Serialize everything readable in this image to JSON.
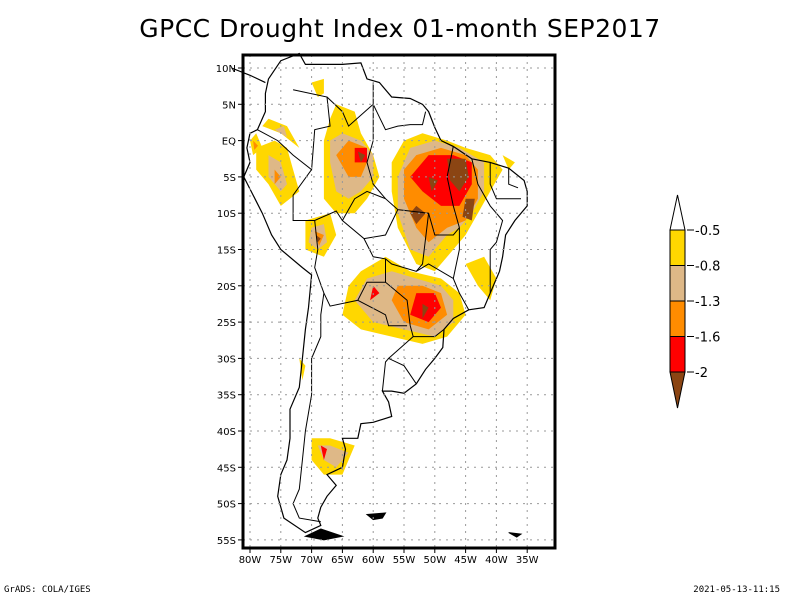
{
  "title": "GPCC Drought Index 01-month SEP2017",
  "footer": {
    "left": "GrADS: COLA/IGES",
    "right": "2021-05-13-11:15"
  },
  "map": {
    "lon_range": [
      -81,
      -31
    ],
    "lat_range": [
      -56,
      12
    ],
    "lon_ticks": [
      {
        "value": -80,
        "label": "80W"
      },
      {
        "value": -75,
        "label": "75W"
      },
      {
        "value": -70,
        "label": "70W"
      },
      {
        "value": -65,
        "label": "65W"
      },
      {
        "value": -60,
        "label": "60W"
      },
      {
        "value": -55,
        "label": "55W"
      },
      {
        "value": -50,
        "label": "50W"
      },
      {
        "value": -45,
        "label": "45W"
      },
      {
        "value": -40,
        "label": "40W"
      },
      {
        "value": -35,
        "label": "35W"
      }
    ],
    "lat_ticks": [
      {
        "value": 10,
        "label": "10N"
      },
      {
        "value": 5,
        "label": "5N"
      },
      {
        "value": 0,
        "label": "EQ"
      },
      {
        "value": -5,
        "label": "5S"
      },
      {
        "value": -10,
        "label": "10S"
      },
      {
        "value": -15,
        "label": "15S"
      },
      {
        "value": -20,
        "label": "20S"
      },
      {
        "value": -25,
        "label": "25S"
      },
      {
        "value": -30,
        "label": "30S"
      },
      {
        "value": -35,
        "label": "35S"
      },
      {
        "value": -40,
        "label": "40S"
      },
      {
        "value": -45,
        "label": "45S"
      },
      {
        "value": -50,
        "label": "50S"
      },
      {
        "value": -55,
        "label": "55S"
      }
    ],
    "gridlines": "dotted"
  },
  "colorbar": {
    "levels": [
      {
        "label": "-0.5",
        "color": "#FFD700",
        "range": "-0.8 to -0.5"
      },
      {
        "label": "-0.8",
        "color": "#DEB887",
        "range": "-1.3 to -0.8"
      },
      {
        "label": "-1.3",
        "color": "#FF8C00",
        "range": "-1.6 to -1.3"
      },
      {
        "label": "-1.6",
        "color": "#FF0000",
        "range": "-2 to -1.6"
      },
      {
        "label": "-2",
        "color": "#8B4513",
        "range": "< -2"
      }
    ],
    "top_extension_color": "#FFFFFF",
    "bottom_extension_color": "#8B4513"
  },
  "drought_patches": [
    {
      "level": 0,
      "pts": [
        [
          -66,
          5
        ],
        [
          -63,
          4
        ],
        [
          -62,
          1
        ],
        [
          -60,
          -2
        ],
        [
          -59,
          -5
        ],
        [
          -61,
          -8
        ],
        [
          -63,
          -10
        ],
        [
          -66,
          -10
        ],
        [
          -68,
          -8
        ],
        [
          -68,
          -4
        ],
        [
          -68,
          0
        ],
        [
          -67,
          3
        ]
      ]
    },
    {
      "level": 1,
      "pts": [
        [
          -65,
          1
        ],
        [
          -62,
          0
        ],
        [
          -60,
          -2
        ],
        [
          -60,
          -5
        ],
        [
          -62,
          -7
        ],
        [
          -64,
          -8
        ],
        [
          -66,
          -7
        ],
        [
          -67,
          -3
        ],
        [
          -67,
          0
        ]
      ]
    },
    {
      "level": 2,
      "pts": [
        [
          -64,
          0
        ],
        [
          -61,
          -1
        ],
        [
          -61,
          -3
        ],
        [
          -62,
          -5
        ],
        [
          -64,
          -5
        ],
        [
          -66,
          -2
        ]
      ]
    },
    {
      "level": 3,
      "pts": [
        [
          -63,
          -1
        ],
        [
          -61,
          -1
        ],
        [
          -61,
          -3
        ],
        [
          -63,
          -3
        ]
      ]
    },
    {
      "level": 4,
      "pts": [
        [
          -62.5,
          -1.5
        ],
        [
          -61.3,
          -2
        ],
        [
          -62,
          -3
        ]
      ]
    },
    {
      "level": 0,
      "pts": [
        [
          -79,
          -1
        ],
        [
          -76,
          0
        ],
        [
          -74,
          -1
        ],
        [
          -73,
          -4
        ],
        [
          -72,
          -7
        ],
        [
          -75,
          -9
        ],
        [
          -77,
          -6
        ],
        [
          -79,
          -4
        ]
      ]
    },
    {
      "level": 1,
      "pts": [
        [
          -77,
          -2
        ],
        [
          -75,
          -3
        ],
        [
          -74,
          -6
        ],
        [
          -75,
          -7
        ],
        [
          -77,
          -5
        ]
      ]
    },
    {
      "level": 2,
      "pts": [
        [
          -76,
          -4
        ],
        [
          -75,
          -5
        ],
        [
          -76,
          -6
        ]
      ]
    },
    {
      "level": 0,
      "pts": [
        [
          -78,
          2
        ],
        [
          -75,
          1
        ],
        [
          -72,
          -1
        ],
        [
          -74,
          2
        ],
        [
          -77,
          3
        ]
      ]
    },
    {
      "level": 1,
      "pts": [
        [
          -76,
          1.5
        ],
        [
          -74,
          0.5
        ],
        [
          -74.5,
          2
        ]
      ]
    },
    {
      "level": 0,
      "pts": [
        [
          -80,
          0
        ],
        [
          -79,
          1
        ],
        [
          -78,
          -1
        ],
        [
          -79.5,
          -2
        ]
      ]
    },
    {
      "level": 2,
      "pts": [
        [
          -79.5,
          0
        ],
        [
          -78.7,
          -0.7
        ],
        [
          -79.3,
          -1.3
        ]
      ]
    },
    {
      "level": 0,
      "pts": [
        [
          -71,
          -11
        ],
        [
          -67,
          -10
        ],
        [
          -66,
          -13
        ],
        [
          -68,
          -16
        ],
        [
          -71,
          -15
        ]
      ]
    },
    {
      "level": 1,
      "pts": [
        [
          -70,
          -12
        ],
        [
          -68,
          -11.5
        ],
        [
          -67.5,
          -14
        ],
        [
          -69,
          -15
        ],
        [
          -70.5,
          -14
        ]
      ]
    },
    {
      "level": 2,
      "pts": [
        [
          -69.5,
          -12.5
        ],
        [
          -68,
          -13
        ],
        [
          -68.8,
          -14.5
        ]
      ]
    },
    {
      "level": 4,
      "pts": [
        [
          -69.3,
          -13
        ],
        [
          -68.5,
          -13.5
        ],
        [
          -69,
          -14
        ]
      ]
    },
    {
      "level": 0,
      "pts": [
        [
          -55,
          0
        ],
        [
          -52,
          1
        ],
        [
          -48,
          0
        ],
        [
          -45,
          -1
        ],
        [
          -41,
          -2
        ],
        [
          -39,
          -4
        ],
        [
          -41,
          -7
        ],
        [
          -43,
          -10
        ],
        [
          -45,
          -13
        ],
        [
          -47,
          -15
        ],
        [
          -50,
          -18
        ],
        [
          -53,
          -17
        ],
        [
          -56,
          -12
        ],
        [
          -57,
          -7
        ],
        [
          -57,
          -3
        ]
      ]
    },
    {
      "level": 1,
      "pts": [
        [
          -54,
          -1
        ],
        [
          -50,
          0
        ],
        [
          -46,
          -1
        ],
        [
          -42,
          -3
        ],
        [
          -42,
          -7
        ],
        [
          -44,
          -10
        ],
        [
          -46,
          -12
        ],
        [
          -48,
          -13
        ],
        [
          -51,
          -16
        ],
        [
          -54,
          -15
        ],
        [
          -56,
          -10
        ],
        [
          -56,
          -5
        ]
      ]
    },
    {
      "level": 2,
      "pts": [
        [
          -53,
          -2
        ],
        [
          -49,
          -1
        ],
        [
          -45,
          -2
        ],
        [
          -43,
          -4
        ],
        [
          -43,
          -8
        ],
        [
          -45,
          -11
        ],
        [
          -48,
          -12
        ],
        [
          -51,
          -14
        ],
        [
          -53,
          -12
        ],
        [
          -55,
          -8
        ],
        [
          -55,
          -4
        ]
      ]
    },
    {
      "level": 3,
      "pts": [
        [
          -51,
          -2
        ],
        [
          -47,
          -2
        ],
        [
          -44,
          -3
        ],
        [
          -44,
          -6
        ],
        [
          -46,
          -9
        ],
        [
          -49,
          -9
        ],
        [
          -52,
          -7
        ],
        [
          -54,
          -5
        ]
      ]
    },
    {
      "level": 4,
      "pts": [
        [
          -48,
          -2.5
        ],
        [
          -45,
          -2.5
        ],
        [
          -44.5,
          -5
        ],
        [
          -46,
          -7
        ],
        [
          -47.5,
          -5.5
        ]
      ]
    },
    {
      "level": 4,
      "pts": [
        [
          -45,
          -8
        ],
        [
          -43.5,
          -8
        ],
        [
          -44,
          -11
        ],
        [
          -45.5,
          -10.5
        ]
      ]
    },
    {
      "level": 4,
      "pts": [
        [
          -53,
          -9
        ],
        [
          -51.5,
          -10
        ],
        [
          -53,
          -11.5
        ],
        [
          -54,
          -10
        ]
      ]
    },
    {
      "level": 4,
      "pts": [
        [
          -51,
          -5
        ],
        [
          -49.5,
          -5.5
        ],
        [
          -50.5,
          -7
        ]
      ]
    },
    {
      "level": 0,
      "pts": [
        [
          -62,
          -18
        ],
        [
          -58,
          -16
        ],
        [
          -54,
          -18
        ],
        [
          -49,
          -19
        ],
        [
          -46,
          -21
        ],
        [
          -45,
          -24
        ],
        [
          -48,
          -27
        ],
        [
          -52,
          -28
        ],
        [
          -57,
          -27
        ],
        [
          -62,
          -26
        ],
        [
          -65,
          -24
        ],
        [
          -64,
          -20
        ]
      ]
    },
    {
      "level": 1,
      "pts": [
        [
          -61,
          -19
        ],
        [
          -57,
          -18
        ],
        [
          -53,
          -19
        ],
        [
          -49,
          -20
        ],
        [
          -47,
          -22
        ],
        [
          -47,
          -25
        ],
        [
          -50,
          -27
        ],
        [
          -55,
          -26
        ],
        [
          -60,
          -25
        ],
        [
          -63,
          -22
        ]
      ]
    },
    {
      "level": 2,
      "pts": [
        [
          -56,
          -20
        ],
        [
          -52,
          -20
        ],
        [
          -49,
          -21
        ],
        [
          -48,
          -24
        ],
        [
          -51,
          -26
        ],
        [
          -55,
          -25
        ],
        [
          -57,
          -22
        ]
      ]
    },
    {
      "level": 3,
      "pts": [
        [
          -53,
          -21
        ],
        [
          -50,
          -21
        ],
        [
          -49,
          -23
        ],
        [
          -51,
          -25
        ],
        [
          -54,
          -24
        ]
      ]
    },
    {
      "level": 4,
      "pts": [
        [
          -52,
          -22.5
        ],
        [
          -51,
          -23
        ],
        [
          -52,
          -24.5
        ]
      ]
    },
    {
      "level": 3,
      "pts": [
        [
          -60,
          -20
        ],
        [
          -59,
          -21
        ],
        [
          -60.5,
          -22
        ]
      ]
    },
    {
      "level": 0,
      "pts": [
        [
          -70,
          -41
        ],
        [
          -67,
          -41
        ],
        [
          -63,
          -42
        ],
        [
          -65,
          -46
        ],
        [
          -68,
          -46
        ],
        [
          -70,
          -44
        ]
      ]
    },
    {
      "level": 1,
      "pts": [
        [
          -69,
          -42
        ],
        [
          -67,
          -42
        ],
        [
          -64,
          -43
        ],
        [
          -66,
          -45
        ],
        [
          -68,
          -44
        ]
      ]
    },
    {
      "level": 3,
      "pts": [
        [
          -68.5,
          -42
        ],
        [
          -67.5,
          -42.5
        ],
        [
          -68,
          -44
        ]
      ]
    },
    {
      "level": 0,
      "pts": [
        [
          -45,
          -17
        ],
        [
          -42,
          -16
        ],
        [
          -40,
          -19
        ],
        [
          -41,
          -22
        ],
        [
          -43,
          -20
        ]
      ]
    },
    {
      "level": 0,
      "pts": [
        [
          -70,
          8
        ],
        [
          -68,
          8.5
        ],
        [
          -68,
          6.5
        ],
        [
          -69,
          6
        ]
      ]
    },
    {
      "level": 0,
      "pts": [
        [
          -39,
          -2
        ],
        [
          -37,
          -3
        ],
        [
          -38,
          -4
        ]
      ]
    },
    {
      "level": 0,
      "pts": [
        [
          -72,
          -30
        ],
        [
          -71,
          -31
        ],
        [
          -71.5,
          -33
        ]
      ]
    }
  ]
}
